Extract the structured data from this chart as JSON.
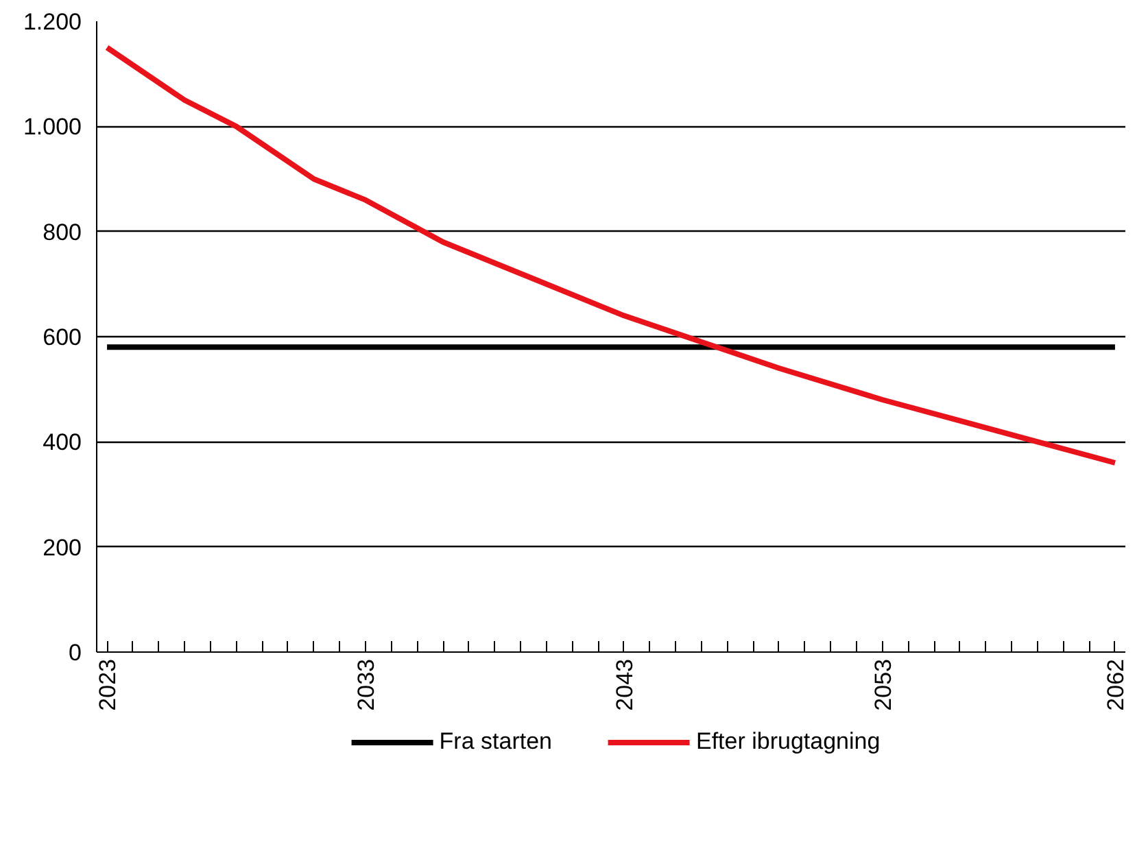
{
  "chart_data": {
    "type": "line",
    "x": [
      2023,
      2026,
      2028,
      2031,
      2033,
      2036,
      2039,
      2043,
      2046,
      2049,
      2053,
      2056,
      2059,
      2062
    ],
    "series": [
      {
        "name": "Fra starten",
        "color": "#000000",
        "x": [
          2023,
          2062
        ],
        "values": [
          580,
          580
        ]
      },
      {
        "name": "Efter ibrugtagning",
        "color": "#e8131b",
        "values": [
          1150,
          1050,
          1000,
          900,
          860,
          780,
          720,
          640,
          590,
          540,
          480,
          440,
          400,
          360
        ]
      }
    ],
    "xlim": [
      2022.6,
      2062.4
    ],
    "ylim": [
      0,
      1200
    ],
    "xticks": [
      2023,
      {
        "value": 2024,
        "label": null
      },
      {
        "value": 2025,
        "label": null
      },
      {
        "value": 2026,
        "label": null
      },
      {
        "value": 2027,
        "label": null
      },
      {
        "value": 2028,
        "label": null
      },
      {
        "value": 2029,
        "label": null
      },
      {
        "value": 2030,
        "label": null
      },
      {
        "value": 2031,
        "label": null
      },
      {
        "value": 2032,
        "label": null
      },
      2033,
      {
        "value": 2034,
        "label": null
      },
      {
        "value": 2035,
        "label": null
      },
      {
        "value": 2036,
        "label": null
      },
      {
        "value": 2037,
        "label": null
      },
      {
        "value": 2038,
        "label": null
      },
      {
        "value": 2039,
        "label": null
      },
      {
        "value": 2040,
        "label": null
      },
      {
        "value": 2041,
        "label": null
      },
      {
        "value": 2042,
        "label": null
      },
      2043,
      {
        "value": 2044,
        "label": null
      },
      {
        "value": 2045,
        "label": null
      },
      {
        "value": 2046,
        "label": null
      },
      {
        "value": 2047,
        "label": null
      },
      {
        "value": 2048,
        "label": null
      },
      {
        "value": 2049,
        "label": null
      },
      {
        "value": 2050,
        "label": null
      },
      {
        "value": 2051,
        "label": null
      },
      {
        "value": 2052,
        "label": null
      },
      2053,
      {
        "value": 2054,
        "label": null
      },
      {
        "value": 2055,
        "label": null
      },
      {
        "value": 2056,
        "label": null
      },
      {
        "value": 2057,
        "label": null
      },
      {
        "value": 2058,
        "label": null
      },
      {
        "value": 2059,
        "label": null
      },
      {
        "value": 2060,
        "label": null
      },
      {
        "value": 2061,
        "label": null
      },
      2062
    ],
    "yticks": [
      0,
      200,
      400,
      600,
      800,
      {
        "value": 1000,
        "label": "1.000"
      },
      {
        "value": 1200,
        "label": "1.200"
      }
    ],
    "grid": "y",
    "legend": "bottom",
    "marker": "none",
    "line_style": "solid"
  }
}
